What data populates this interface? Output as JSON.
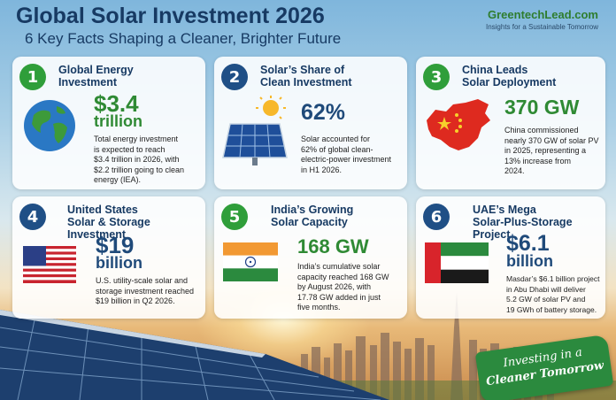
{
  "header": {
    "title": "Global Solar Investment 2026",
    "subtitle": "6 Key Facts Shaping a Cleaner, Brighter Future",
    "brand_name": "GreentechLead.com",
    "brand_tagline": "Insights for a Sustainable Tomorrow"
  },
  "cards": [
    {
      "number": "1",
      "title_line1": "Global Energy",
      "title_line2": "Investment",
      "value_line1": "$3.4",
      "value_line2": "trillion",
      "desc_lines": [
        "Total energy investment",
        "is expected to reach",
        "$3.4 trillion in 2026, with",
        "$2.2 trillion going to clean",
        "energy (IEA)."
      ],
      "icon": "globe-icon"
    },
    {
      "number": "2",
      "title_line1": "Solar’s Share of",
      "title_line2": "Clean Investment",
      "value_line1": "62%",
      "value_line2": "",
      "desc_lines": [
        "Solar accounted for",
        "62% of global clean-",
        "electric-power investment",
        "in H1 2026."
      ],
      "icon": "solar-panel-icon"
    },
    {
      "number": "3",
      "title_line1": "China Leads",
      "title_line2": "Solar Deployment",
      "value_line1": "370 GW",
      "value_line2": "",
      "desc_lines": [
        "China commissioned",
        "nearly 370 GW of solar PV",
        "in 2025, representing a",
        "13% increase from",
        "2024."
      ],
      "icon": "china-map-icon"
    },
    {
      "number": "4",
      "title_line1": "United States",
      "title_line2": "Solar & Storage Investment",
      "value_line1": "$19",
      "value_line2": "billion",
      "desc_lines": [
        "U.S. utility-scale solar and",
        "storage investment reached",
        "$19 billion in Q2 2026."
      ],
      "icon": "us-flag-icon"
    },
    {
      "number": "5",
      "title_line1": "India’s Growing",
      "title_line2": "Solar Capacity",
      "value_line1": "168 GW",
      "value_line2": "",
      "desc_lines": [
        "India’s cumulative solar",
        "capacity reached 168 GW",
        "by August 2026, with",
        "17.78 GW added in just",
        "five months."
      ],
      "icon": "india-flag-icon"
    },
    {
      "number": "6",
      "title_line1": "UAE’s Mega",
      "title_line2": "Solar-Plus-Storage Project",
      "value_line1": "$6.1",
      "value_line2": "billion",
      "desc_lines": [
        "Masdar’s $6.1 billion project",
        "in Abu Dhabi will deliver",
        "5.2 GW of solar PV and",
        "19 GWh of battery storage."
      ],
      "icon": "uae-flag-icon"
    }
  ],
  "badge": {
    "line1": "Investing in a",
    "line2": "Cleaner Tomorrow"
  },
  "colors": {
    "navy": "#173a63",
    "green": "#2f8a34",
    "brand_green": "#2f7d2f"
  }
}
